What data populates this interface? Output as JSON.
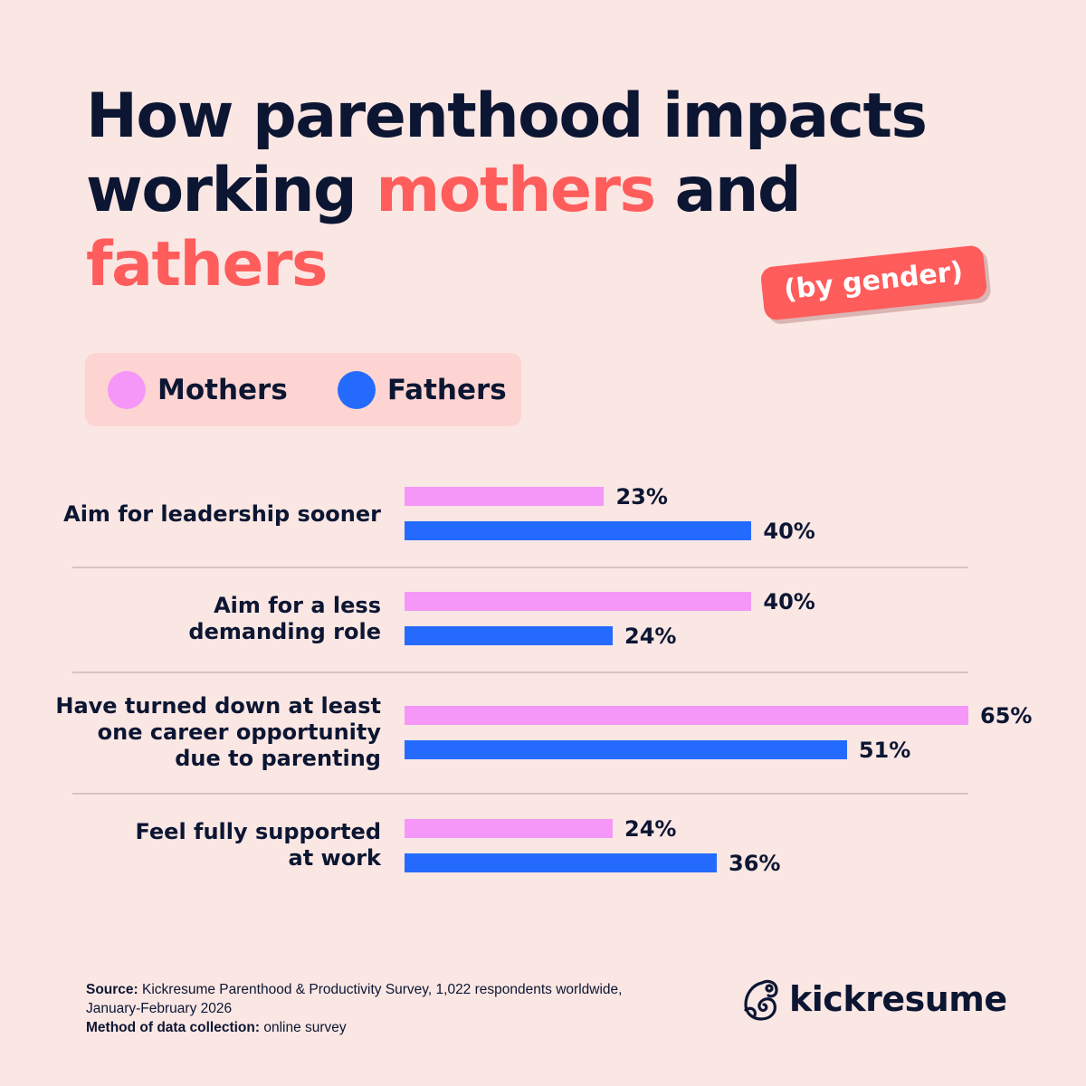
{
  "title": {
    "line1": "How parenthood impacts",
    "line2_prefix": "working ",
    "line2_accent": "mothers",
    "line2_suffix": " and",
    "line3_accent": "fathers"
  },
  "badge": "(by gender)",
  "colors": {
    "background": "#fae6e3",
    "mothers": "#f497f9",
    "fathers": "#246bfd",
    "accent": "#ff5c5c",
    "text": "#0c1633"
  },
  "chart_data": {
    "type": "bar",
    "orientation": "horizontal",
    "categories": [
      "Aim for leadership sooner",
      "Aim for a less demanding role",
      "Have turned down at least one career opportunity due to parenting",
      "Feel fully supported at work"
    ],
    "category_lines": [
      [
        "Aim for leadership sooner"
      ],
      [
        "Aim for a less",
        "demanding role"
      ],
      [
        "Have turned down at least",
        "one career opportunity",
        "due to parenting"
      ],
      [
        "Feel fully supported",
        "at work"
      ]
    ],
    "series": [
      {
        "name": "Mothers",
        "values": [
          23,
          40,
          65,
          24
        ],
        "labels": [
          "23%",
          "40%",
          "65%",
          "24%"
        ]
      },
      {
        "name": "Fathers",
        "values": [
          40,
          24,
          51,
          36
        ],
        "labels": [
          "40%",
          "24%",
          "51%",
          "36%"
        ]
      }
    ],
    "unit": "%",
    "legend": "top-left",
    "grid": false
  },
  "footer": {
    "source_label": "Source:",
    "source_text": " Kickresume Parenthood & Productivity Survey, 1,022 respondents worldwide,",
    "source_text2": "January-February 2026",
    "method_label": "Method of data collection:",
    "method_text": " online survey"
  },
  "logo": {
    "text": "kickresume",
    "icon": "chameleon-icon"
  }
}
